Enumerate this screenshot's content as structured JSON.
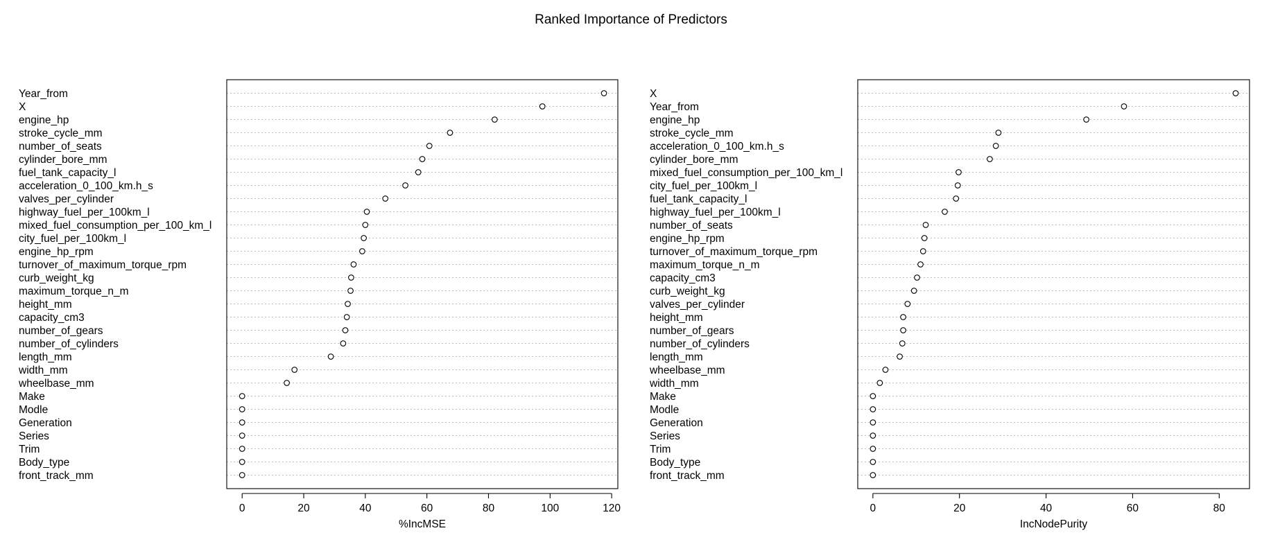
{
  "title": "Ranked Importance of Predictors",
  "chart_data": [
    {
      "type": "scatter",
      "subtype": "dotchart",
      "xlabel": "%IncMSE",
      "xlim": [
        -5,
        122
      ],
      "xticks": [
        0,
        20,
        40,
        60,
        80,
        100,
        120
      ],
      "grid": "horizontal dotted",
      "categories": [
        "Year_from",
        "X",
        "engine_hp",
        "stroke_cycle_mm",
        "number_of_seats",
        "cylinder_bore_mm",
        "fuel_tank_capacity_l",
        "acceleration_0_100_km.h_s",
        "valves_per_cylinder",
        "highway_fuel_per_100km_l",
        "mixed_fuel_consumption_per_100_km_l",
        "city_fuel_per_100km_l",
        "engine_hp_rpm",
        "turnover_of_maximum_torque_rpm",
        "curb_weight_kg",
        "maximum_torque_n_m",
        "height_mm",
        "capacity_cm3",
        "number_of_gears",
        "number_of_cylinders",
        "length_mm",
        "width_mm",
        "wheelbase_mm",
        "Make",
        "Modle",
        "Generation",
        "Series",
        "Trim",
        "Body_type",
        "front_track_mm"
      ],
      "values": [
        117.5,
        97.5,
        82.0,
        67.5,
        60.8,
        58.5,
        57.2,
        53.0,
        46.5,
        40.5,
        40.0,
        39.5,
        39.0,
        36.2,
        35.4,
        35.2,
        34.3,
        34.0,
        33.5,
        32.8,
        28.8,
        17.0,
        14.5,
        0,
        0,
        0,
        0,
        0,
        0,
        0
      ]
    },
    {
      "type": "scatter",
      "subtype": "dotchart",
      "xlabel": "IncNodePurity",
      "xlim": [
        -3.5,
        87
      ],
      "xticks": [
        0,
        20,
        40,
        60,
        80
      ],
      "grid": "horizontal dotted",
      "categories": [
        "X",
        "Year_from",
        "engine_hp",
        "stroke_cycle_mm",
        "acceleration_0_100_km.h_s",
        "cylinder_bore_mm",
        "mixed_fuel_consumption_per_100_km_l",
        "city_fuel_per_100km_l",
        "fuel_tank_capacity_l",
        "highway_fuel_per_100km_l",
        "number_of_seats",
        "engine_hp_rpm",
        "turnover_of_maximum_torque_rpm",
        "maximum_torque_n_m",
        "capacity_cm3",
        "curb_weight_kg",
        "valves_per_cylinder",
        "height_mm",
        "number_of_gears",
        "number_of_cylinders",
        "length_mm",
        "wheelbase_mm",
        "width_mm",
        "Make",
        "Modle",
        "Generation",
        "Series",
        "Trim",
        "Body_type",
        "front_track_mm"
      ],
      "values": [
        83.8,
        58.0,
        49.3,
        29.0,
        28.4,
        27.0,
        19.8,
        19.6,
        19.2,
        16.6,
        12.2,
        11.9,
        11.6,
        11.0,
        10.2,
        9.5,
        8.0,
        7.0,
        7.0,
        6.8,
        6.2,
        2.9,
        1.6,
        0,
        0,
        0,
        0,
        0,
        0,
        0
      ]
    }
  ]
}
